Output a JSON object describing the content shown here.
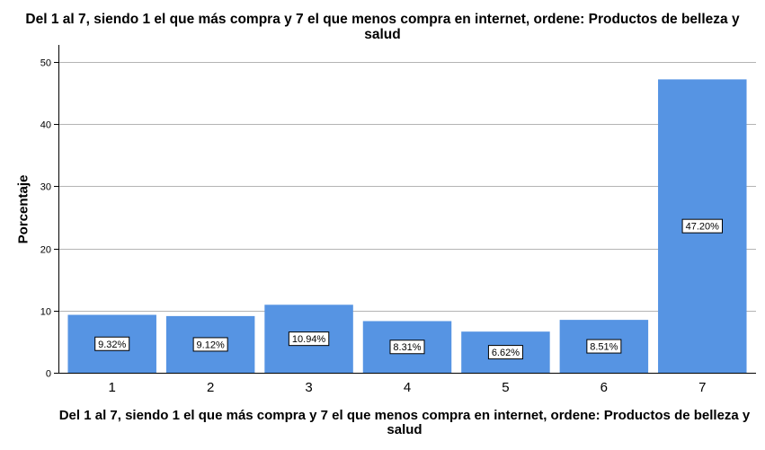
{
  "chart_data": {
    "type": "bar",
    "title_lines": [
      "Del 1 al 7, siendo 1 el que más compra y 7 el que menos compra en internet, ordene: Productos de belleza y",
      "salud"
    ],
    "xlabel_lines": [
      "Del 1 al 7, siendo 1 el que más compra y 7 el que menos compra en internet, ordene: Productos de belleza y",
      "salud"
    ],
    "ylabel": "Porcentaje",
    "categories": [
      "1",
      "2",
      "3",
      "4",
      "5",
      "6",
      "7"
    ],
    "values": [
      9.32,
      9.12,
      10.94,
      8.31,
      6.62,
      8.51,
      47.2
    ],
    "data_labels": [
      "9.32%",
      "9.12%",
      "10.94%",
      "8.31%",
      "6.62%",
      "8.51%",
      "47.20%"
    ],
    "yticks": [
      0,
      10,
      20,
      30,
      40,
      50
    ],
    "ylim": [
      0,
      50
    ],
    "grid": true,
    "bar_color": "#5694e3",
    "grid_color": "#b4b4b4"
  }
}
